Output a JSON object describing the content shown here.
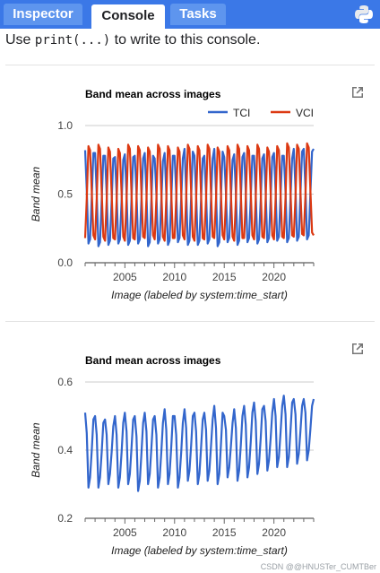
{
  "tabs": [
    {
      "label": "Inspector",
      "active": false
    },
    {
      "label": "Console",
      "active": true
    },
    {
      "label": "Tasks",
      "active": false
    }
  ],
  "console": {
    "hint_prefix": "Use ",
    "hint_code": "print(...)",
    "hint_suffix": " to write to this console."
  },
  "icons": {
    "header": "python-logo-icon",
    "popout": "open-in-new-icon"
  },
  "colors": {
    "tab_bar": "#3b78e7",
    "tci": "#3366cc",
    "vci": "#dc3912",
    "single_series": "#3366cc"
  },
  "watermark": "CSDN @@HNUSTer_CUMTBer",
  "chart_data": [
    {
      "type": "line",
      "title": "Band mean across images",
      "xlabel": "Image (labeled by system:time_start)",
      "ylabel": "Band mean",
      "xlim": [
        2001,
        2024
      ],
      "xticks": [
        "2005",
        "2010",
        "2015",
        "2020"
      ],
      "ylim": [
        0.0,
        1.0
      ],
      "yticks": [
        "0.0",
        "0.5",
        "1.0"
      ],
      "legend_position": "top-right",
      "series": [
        {
          "name": "TCI",
          "color": "#3366cc",
          "pattern": "seasonal",
          "years": [
            2001,
            2002,
            2003,
            2004,
            2005,
            2006,
            2007,
            2008,
            2009,
            2010,
            2011,
            2012,
            2013,
            2014,
            2015,
            2016,
            2017,
            2018,
            2019,
            2020,
            2021,
            2022,
            2023
          ],
          "peaks": [
            0.82,
            0.8,
            0.78,
            0.77,
            0.79,
            0.78,
            0.8,
            0.76,
            0.8,
            0.78,
            0.83,
            0.78,
            0.78,
            0.83,
            0.77,
            0.79,
            0.8,
            0.78,
            0.79,
            0.8,
            0.78,
            0.83,
            0.83
          ],
          "troughs": [
            0.14,
            0.12,
            0.13,
            0.14,
            0.13,
            0.14,
            0.12,
            0.14,
            0.13,
            0.15,
            0.13,
            0.13,
            0.14,
            0.12,
            0.15,
            0.13,
            0.15,
            0.14,
            0.15,
            0.16,
            0.15,
            0.16,
            0.17
          ]
        },
        {
          "name": "VCI",
          "color": "#dc3912",
          "pattern": "anti-seasonal",
          "years": [
            2001,
            2002,
            2003,
            2004,
            2005,
            2006,
            2007,
            2008,
            2009,
            2010,
            2011,
            2012,
            2013,
            2014,
            2015,
            2016,
            2017,
            2018,
            2019,
            2020,
            2021,
            2022,
            2023
          ],
          "peaks": [
            0.85,
            0.86,
            0.84,
            0.83,
            0.86,
            0.85,
            0.84,
            0.86,
            0.85,
            0.84,
            0.86,
            0.85,
            0.86,
            0.84,
            0.85,
            0.86,
            0.85,
            0.86,
            0.84,
            0.85,
            0.87,
            0.86,
            0.87
          ],
          "troughs": [
            0.18,
            0.17,
            0.16,
            0.17,
            0.16,
            0.17,
            0.18,
            0.17,
            0.16,
            0.18,
            0.17,
            0.16,
            0.17,
            0.18,
            0.17,
            0.16,
            0.18,
            0.17,
            0.18,
            0.17,
            0.18,
            0.19,
            0.2
          ]
        }
      ]
    },
    {
      "type": "line",
      "title": "Band mean across images",
      "xlabel": "Image (labeled by system:time_start)",
      "ylabel": "Band mean",
      "xlim": [
        2001,
        2024
      ],
      "xticks": [
        "2005",
        "2010",
        "2015",
        "2020"
      ],
      "ylim": [
        0.2,
        0.6
      ],
      "yticks": [
        "0.2",
        "0.4",
        "0.6"
      ],
      "series": [
        {
          "color": "#3366cc",
          "pattern": "seasonal",
          "years": [
            2001,
            2002,
            2003,
            2004,
            2005,
            2006,
            2007,
            2008,
            2009,
            2010,
            2011,
            2012,
            2013,
            2014,
            2015,
            2016,
            2017,
            2018,
            2019,
            2020,
            2021,
            2022,
            2023
          ],
          "peaks": [
            0.51,
            0.5,
            0.49,
            0.5,
            0.51,
            0.5,
            0.51,
            0.5,
            0.52,
            0.5,
            0.52,
            0.51,
            0.51,
            0.53,
            0.5,
            0.52,
            0.53,
            0.54,
            0.53,
            0.55,
            0.56,
            0.55,
            0.55
          ],
          "troughs": [
            0.29,
            0.29,
            0.3,
            0.29,
            0.3,
            0.28,
            0.3,
            0.29,
            0.3,
            0.29,
            0.31,
            0.3,
            0.31,
            0.3,
            0.32,
            0.31,
            0.32,
            0.33,
            0.34,
            0.35,
            0.35,
            0.36,
            0.37
          ]
        }
      ]
    }
  ]
}
